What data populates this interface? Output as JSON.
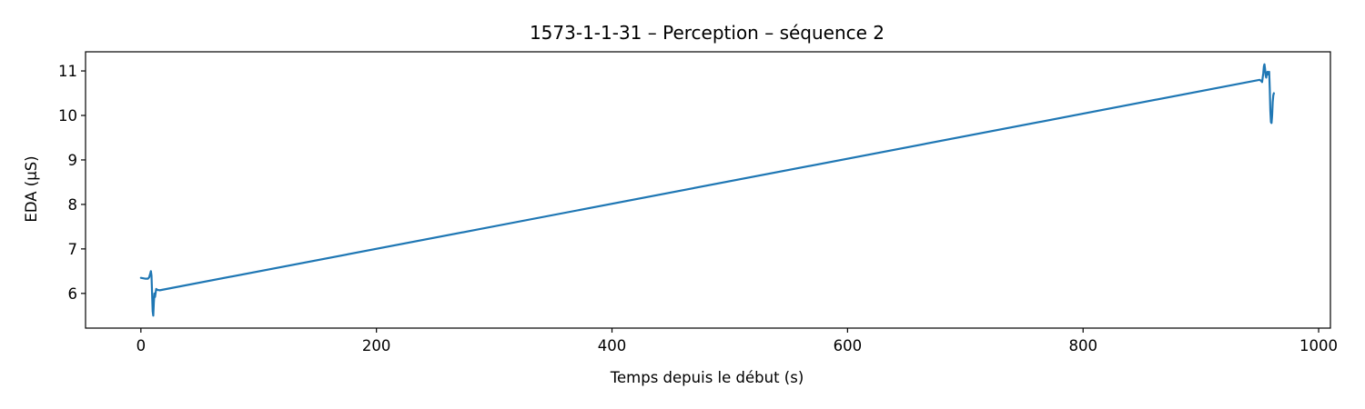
{
  "chart_data": {
    "type": "line",
    "title": "1573-1-1-31 – Perception – séquence 2",
    "xlabel": "Temps depuis le début (s)",
    "ylabel": "EDA (µS)",
    "xlim": [
      -47,
      1010
    ],
    "ylim": [
      5.22,
      11.43
    ],
    "xticks": [
      0,
      200,
      400,
      600,
      800,
      1000
    ],
    "yticks": [
      6,
      7,
      8,
      9,
      10,
      11
    ],
    "grid": false,
    "legend": false,
    "series": [
      {
        "color": "#1f77b4",
        "x": [
          0,
          2,
          4,
          6,
          7,
          8,
          8.5,
          9,
          9.5,
          10,
          10.5,
          11,
          11.5,
          12,
          13,
          14,
          16,
          950,
          951,
          952,
          952.5,
          953,
          953.5,
          954,
          954.5,
          955,
          955.5,
          956,
          956.5,
          957,
          957.5,
          958,
          958.5,
          959,
          959.5,
          960,
          960.5,
          961,
          961.5,
          962
        ],
        "y": [
          6.35,
          6.34,
          6.33,
          6.33,
          6.36,
          6.45,
          6.5,
          6.4,
          6.0,
          5.6,
          5.5,
          5.8,
          6.0,
          5.92,
          6.1,
          6.08,
          6.07,
          10.8,
          10.78,
          10.75,
          10.85,
          10.95,
          11.1,
          11.15,
          11.05,
          10.9,
          10.85,
          10.95,
          10.98,
          10.92,
          10.97,
          10.98,
          10.6,
          10.1,
          9.85,
          9.83,
          10.0,
          10.3,
          10.45,
          10.5
        ]
      }
    ]
  }
}
